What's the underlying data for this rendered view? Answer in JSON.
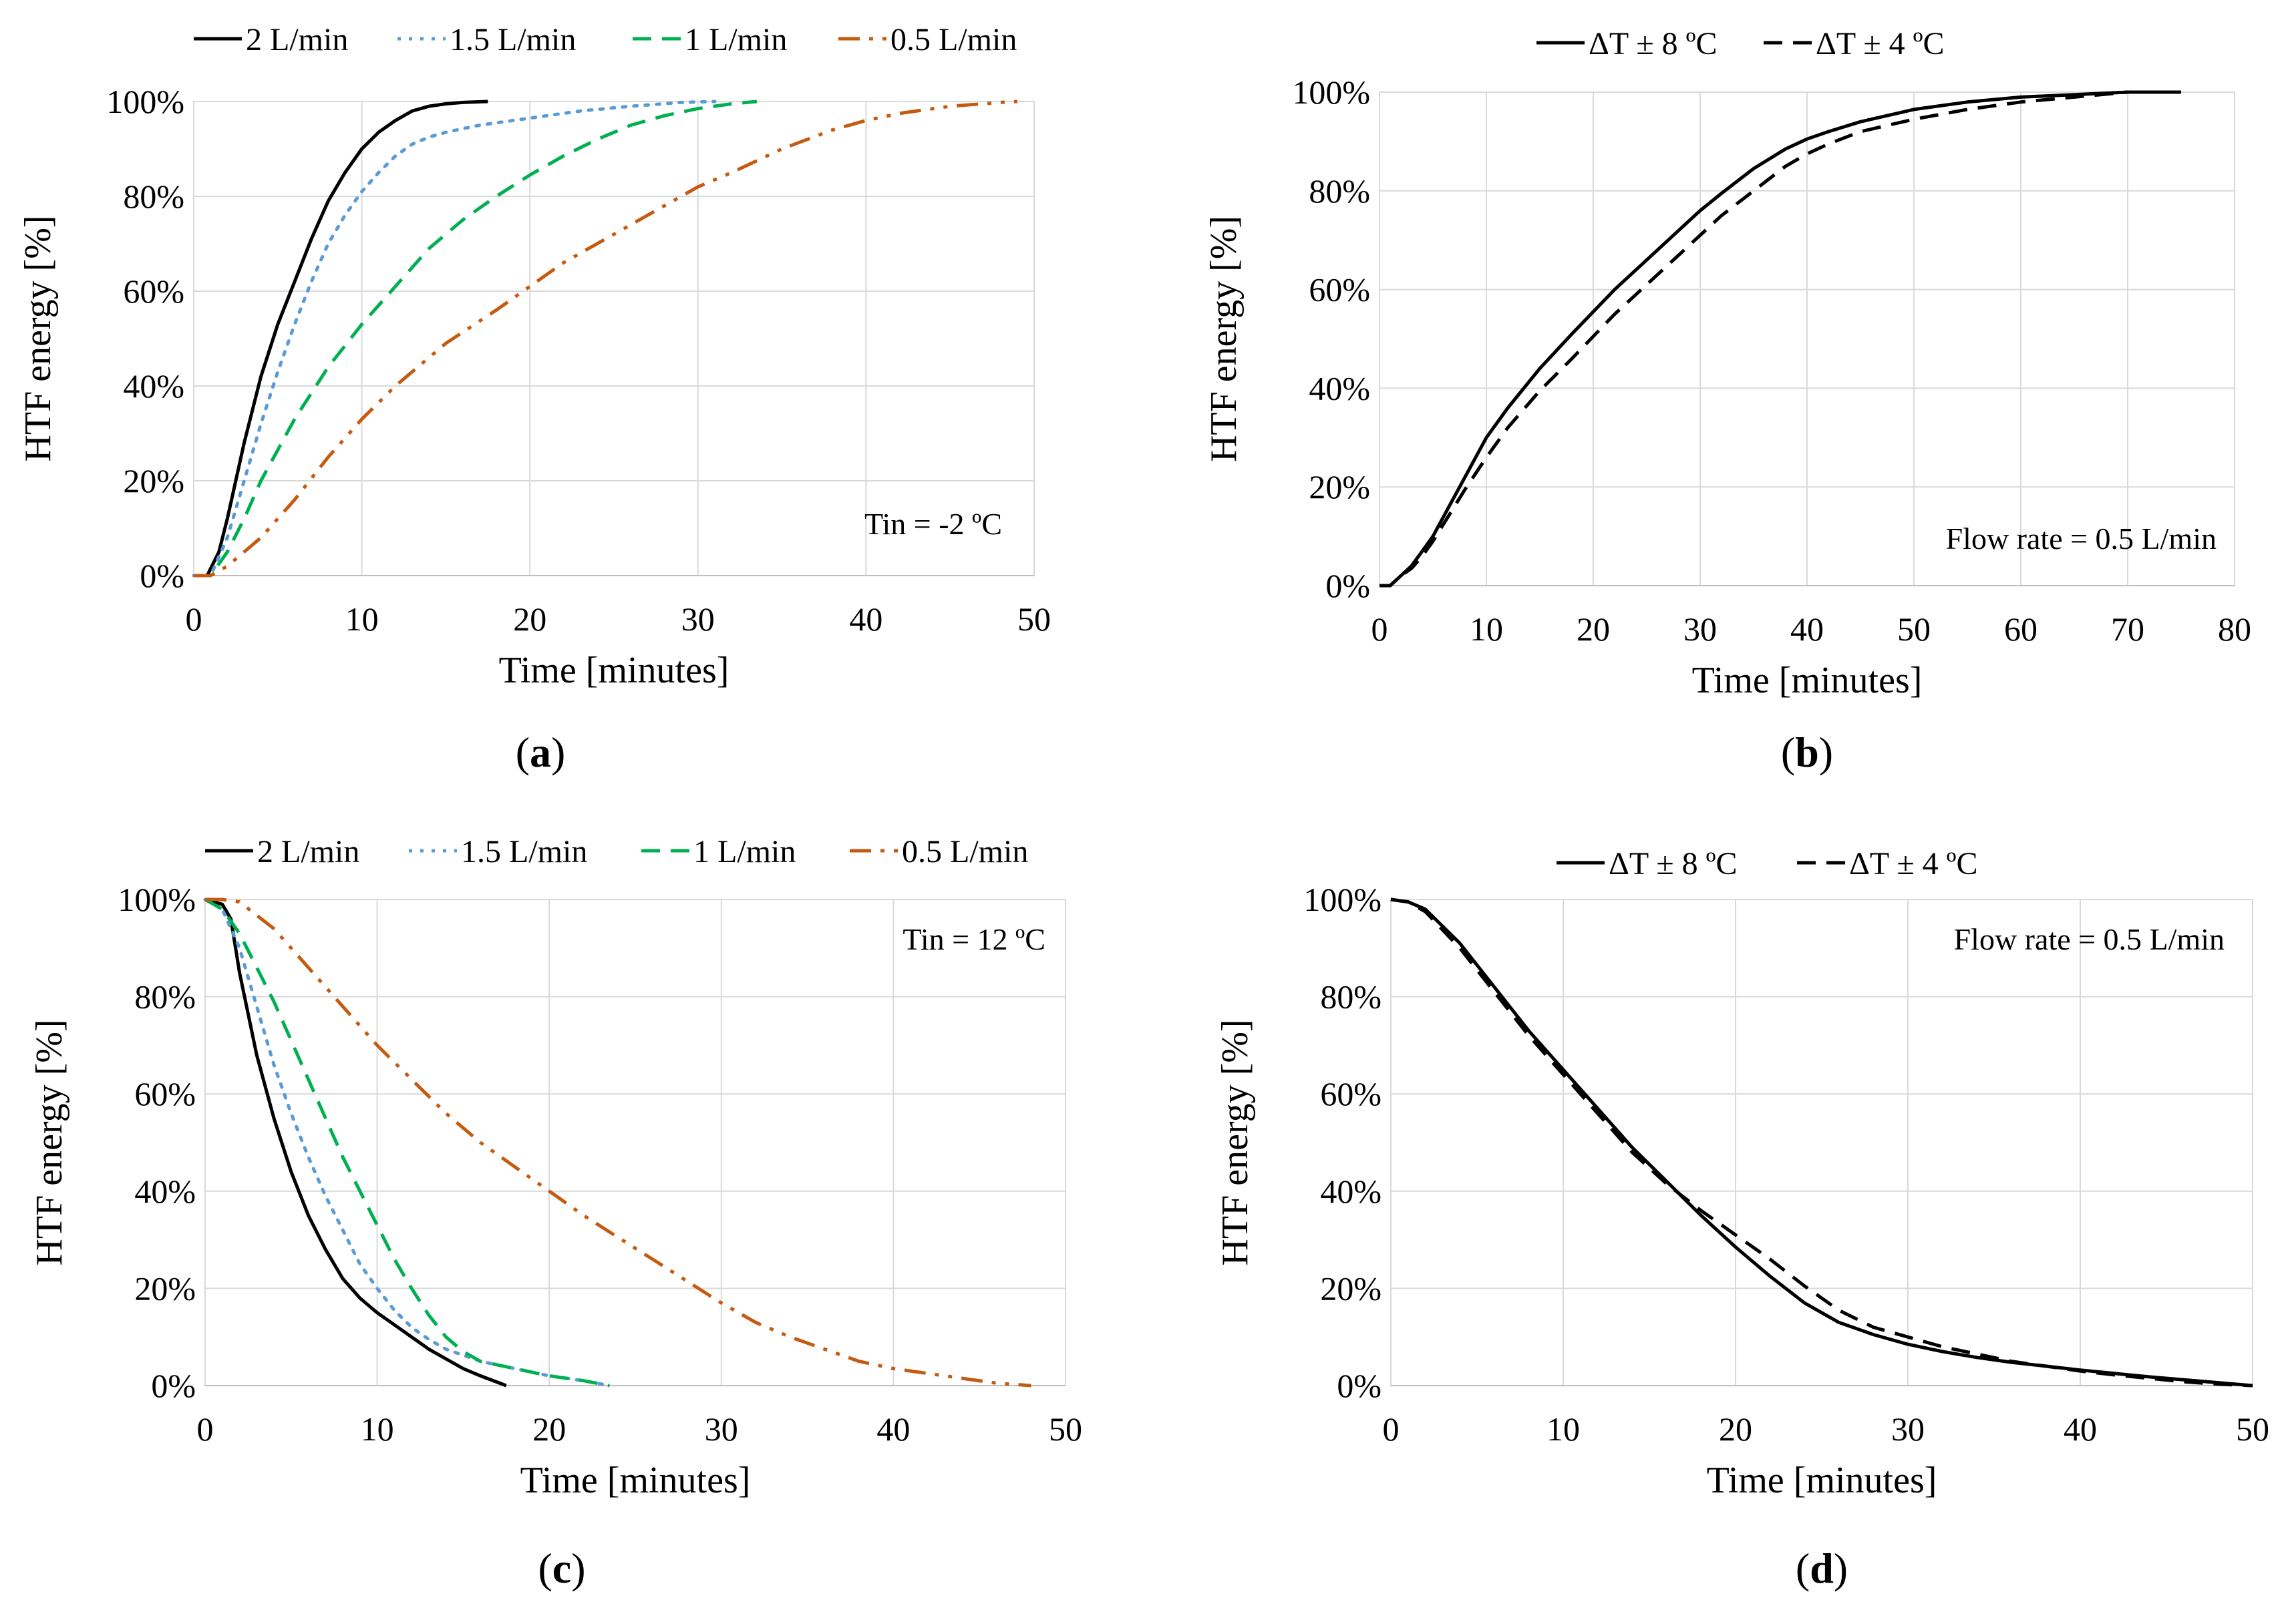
{
  "chart_data": [
    {
      "panel": "a",
      "caption_letter": "a",
      "type": "line",
      "xlabel": "Time [minutes]",
      "ylabel": "HTF energy [%]",
      "xlim": [
        0,
        50
      ],
      "ylim": [
        0,
        100
      ],
      "xticks": [
        "0",
        "10",
        "20",
        "30",
        "40",
        "50"
      ],
      "yticks": [
        "0%",
        "20%",
        "40%",
        "60%",
        "80%",
        "100%"
      ],
      "grid": true,
      "legend_position": "top",
      "annotation": "Tin = -2 ºC",
      "series": [
        {
          "name": "2 L/min",
          "color": "#000000",
          "dash": "solid",
          "x": [
            0,
            0.8,
            1.5,
            2,
            3,
            4,
            5,
            6,
            7,
            8,
            9,
            10,
            11,
            12,
            13,
            14,
            15,
            16,
            17.5
          ],
          "y": [
            0,
            0,
            5,
            12,
            28,
            42,
            53,
            62,
            71,
            79,
            85,
            90,
            93.5,
            96,
            98,
            99,
            99.5,
            99.8,
            100
          ]
        },
        {
          "name": "1.5 L/min",
          "color": "#5b9bd5",
          "dash": "dot",
          "x": [
            0,
            1,
            2,
            3,
            4,
            5,
            6,
            7,
            8,
            9,
            10,
            11,
            12,
            13,
            14,
            15,
            17,
            20,
            23,
            26,
            29,
            31
          ],
          "y": [
            0,
            0,
            8,
            20,
            32,
            43,
            53,
            62,
            70,
            76,
            81,
            85,
            88.5,
            91,
            92.5,
            93.5,
            95,
            96.5,
            98,
            99,
            99.8,
            100
          ]
        },
        {
          "name": "1 L/min",
          "color": "#00b050",
          "dash": "dash",
          "x": [
            0,
            1,
            2,
            3,
            4,
            6,
            8,
            10,
            12,
            14,
            16,
            18,
            20,
            22,
            24,
            26,
            28,
            30,
            32,
            33.5
          ],
          "y": [
            0,
            0,
            5,
            12,
            20,
            33,
            44,
            53,
            61,
            69,
            75,
            80,
            84.5,
            88.5,
            92,
            95,
            97,
            98.5,
            99.5,
            100
          ]
        },
        {
          "name": "0.5 L/min",
          "color": "#c55a11",
          "dash": "dashdotdot",
          "x": [
            0,
            1,
            2,
            4,
            6,
            8,
            10,
            12,
            15,
            18,
            20,
            22,
            25,
            28,
            30,
            32,
            35,
            38,
            40,
            42,
            45,
            48,
            49
          ],
          "y": [
            0,
            0,
            2,
            8,
            16,
            25,
            33,
            40,
            49,
            56,
            61,
            66,
            72,
            78,
            82,
            85,
            90,
            94,
            96,
            97.5,
            99,
            99.8,
            100
          ]
        }
      ]
    },
    {
      "panel": "b",
      "caption_letter": "b",
      "type": "line",
      "xlabel": "Time [minutes]",
      "ylabel": "HTF energy [%]",
      "xlim": [
        0,
        80
      ],
      "ylim": [
        0,
        100
      ],
      "xticks": [
        "0",
        "10",
        "20",
        "30",
        "40",
        "50",
        "60",
        "70",
        "80"
      ],
      "yticks": [
        "0%",
        "20%",
        "40%",
        "60%",
        "80%",
        "100%"
      ],
      "grid": true,
      "legend_position": "top",
      "annotation": "Flow rate = 0.5 L/min",
      "series": [
        {
          "name": "ΔT ± 8 ºC",
          "color": "#000000",
          "dash": "solid",
          "x": [
            0,
            1,
            2,
            3,
            4,
            5,
            6,
            8,
            10,
            12,
            15,
            18,
            20,
            22,
            25,
            28,
            30,
            32,
            35,
            38,
            40,
            42,
            45,
            48,
            50,
            55,
            60,
            65,
            70,
            75
          ],
          "y": [
            0,
            0,
            2,
            4,
            7,
            10,
            14,
            22,
            30,
            36,
            44,
            51,
            55.5,
            60,
            66,
            72,
            76,
            79.5,
            84.5,
            88.5,
            90.5,
            92,
            94,
            95.5,
            96.5,
            98,
            99,
            99.5,
            100,
            100
          ]
        },
        {
          "name": "ΔT ± 4 ºC",
          "color": "#000000",
          "dash": "dash",
          "x": [
            0,
            1,
            2,
            3,
            4,
            5,
            6,
            8,
            10,
            12,
            15,
            18,
            20,
            22,
            25,
            28,
            30,
            32,
            35,
            38,
            40,
            42,
            45,
            48,
            50,
            55,
            60,
            65,
            70
          ],
          "y": [
            0,
            0,
            2,
            3.5,
            6,
            9,
            12.5,
            19.5,
            26,
            32,
            39.5,
            46,
            50.5,
            55,
            61,
            67,
            71,
            75,
            80,
            85,
            87.5,
            89.5,
            92,
            93.5,
            94.5,
            96.5,
            98,
            99,
            100
          ]
        }
      ]
    },
    {
      "panel": "c",
      "caption_letter": "c",
      "type": "line",
      "xlabel": "Time [minutes]",
      "ylabel": "HTF energy [%]",
      "xlim": [
        0,
        50
      ],
      "ylim": [
        0,
        100
      ],
      "xticks": [
        "0",
        "10",
        "20",
        "30",
        "40",
        "50"
      ],
      "yticks": [
        "0%",
        "20%",
        "40%",
        "60%",
        "80%",
        "100%"
      ],
      "grid": true,
      "legend_position": "top",
      "annotation": "Tin = 12 ºC",
      "series": [
        {
          "name": "2 L/min",
          "color": "#000000",
          "dash": "solid",
          "x": [
            0,
            1,
            1.5,
            2,
            3,
            4,
            5,
            6,
            7,
            8,
            9,
            10,
            11,
            12,
            13,
            14,
            15,
            16,
            17.5
          ],
          "y": [
            100,
            99,
            96,
            85,
            68,
            55,
            44,
            35,
            28,
            22,
            18,
            15,
            12.5,
            10,
            7.5,
            5.5,
            3.5,
            2,
            0
          ]
        },
        {
          "name": "1.5 L/min",
          "color": "#5b9bd5",
          "dash": "dot",
          "x": [
            0,
            1,
            2,
            3,
            4,
            5,
            6,
            7,
            8,
            9,
            10,
            11,
            12,
            13,
            14,
            16,
            18,
            20,
            22,
            23.5
          ],
          "y": [
            100,
            98,
            90,
            78,
            66,
            56,
            47,
            39,
            32,
            25,
            20,
            15.5,
            12,
            9.5,
            7.5,
            5,
            3.5,
            2,
            1,
            0
          ]
        },
        {
          "name": "1 L/min",
          "color": "#00b050",
          "dash": "dash",
          "x": [
            0,
            1,
            2,
            3,
            4,
            5,
            6,
            7,
            8,
            9,
            10,
            11,
            12,
            13,
            14,
            15,
            16,
            18,
            20,
            22,
            23.5
          ],
          "y": [
            100,
            98,
            93,
            86,
            79,
            71,
            63,
            55,
            47,
            40,
            33,
            26,
            20,
            14.5,
            10,
            7,
            5,
            3.5,
            2,
            1,
            0
          ]
        },
        {
          "name": "0.5 L/min",
          "color": "#c55a11",
          "dash": "dashdotdot",
          "x": [
            0,
            1,
            2,
            4,
            6,
            8,
            10,
            12,
            14,
            16,
            18,
            20,
            22,
            24,
            26,
            28,
            30,
            32,
            34,
            36,
            38,
            40,
            42,
            44,
            46,
            48
          ],
          "y": [
            100,
            100,
            99.5,
            94,
            86,
            78,
            70,
            63,
            56,
            50,
            45,
            40,
            35,
            30.5,
            26,
            21.5,
            17,
            13,
            10,
            7.5,
            5,
            3.5,
            2.5,
            1.5,
            0.5,
            0
          ]
        }
      ]
    },
    {
      "panel": "d",
      "caption_letter": "d",
      "type": "line",
      "xlabel": "Time [minutes]",
      "ylabel": "HTF energy [%]",
      "xlim": [
        0,
        50
      ],
      "ylim": [
        0,
        100
      ],
      "xticks": [
        "0",
        "10",
        "20",
        "30",
        "40",
        "50"
      ],
      "yticks": [
        "0%",
        "20%",
        "40%",
        "60%",
        "80%",
        "100%"
      ],
      "grid": true,
      "legend_position": "top",
      "annotation": "Flow rate = 0.5 L/min",
      "series": [
        {
          "name": "ΔT ± 8 ºC",
          "color": "#000000",
          "dash": "solid",
          "x": [
            0,
            1,
            2,
            4,
            6,
            8,
            10,
            12,
            14,
            16,
            18,
            20,
            22,
            24,
            26,
            28,
            30,
            32,
            34,
            36,
            38,
            40,
            42,
            44,
            46,
            48,
            50
          ],
          "y": [
            100,
            99.5,
            98,
            91,
            82,
            73,
            65,
            57,
            49,
            42,
            35,
            28.5,
            22.5,
            17,
            13,
            10.5,
            8.5,
            7,
            5.8,
            4.8,
            4,
            3.2,
            2.5,
            1.8,
            1.2,
            0.6,
            0
          ]
        },
        {
          "name": "ΔT ± 4 ºC",
          "color": "#000000",
          "dash": "dash",
          "x": [
            0,
            1,
            2,
            4,
            6,
            8,
            10,
            12,
            14,
            16,
            18,
            20,
            22,
            24,
            26,
            28,
            30,
            32,
            34,
            36,
            38,
            40,
            42,
            44,
            46,
            48,
            50
          ],
          "y": [
            100,
            99.5,
            97.5,
            90,
            81,
            72,
            64,
            56,
            48,
            41.5,
            36,
            31,
            26,
            20.5,
            15.5,
            12,
            10,
            8,
            6.5,
            5,
            4,
            3,
            2.2,
            1.5,
            0.8,
            0.3,
            0
          ]
        }
      ]
    }
  ]
}
